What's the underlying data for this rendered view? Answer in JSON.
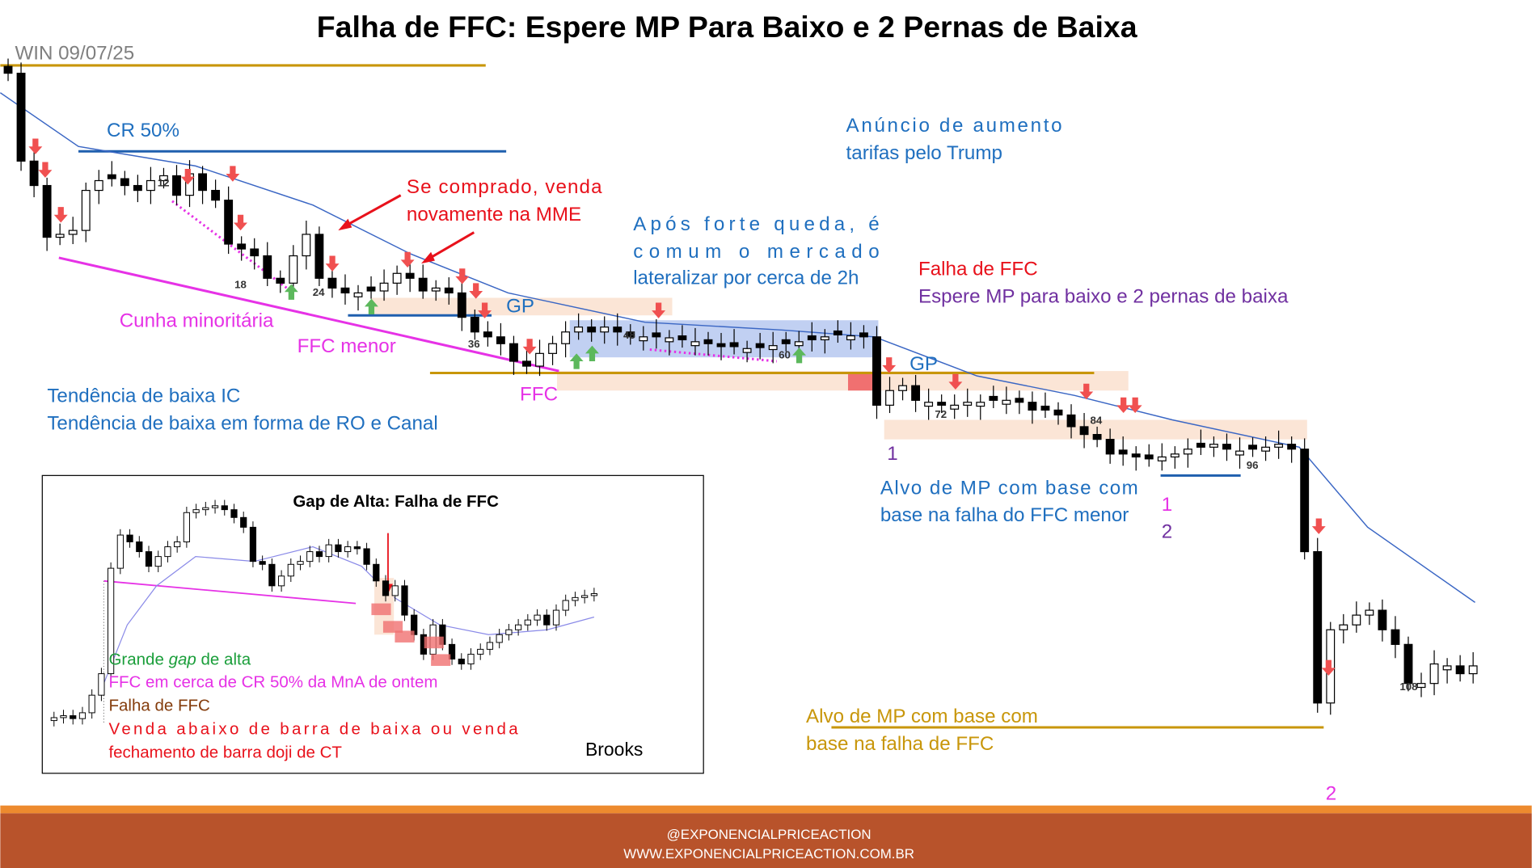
{
  "title": "Falha de FFC: Espere MP Para Baixo e 2 Pernas de Baixa",
  "symbol": "WIN 09/07/25",
  "annotations": {
    "cr50": "CR 50%",
    "sell_again": [
      "Se comprado, venda",
      "novamente na MME"
    ],
    "announcement": [
      "Anúncio de aumento",
      "tarifas pelo Trump"
    ],
    "after_drop": [
      "Após forte queda, é",
      "comum o mercado",
      "lateralizar por cerca de 2h"
    ],
    "ffc_failure": "Falha de FFC",
    "expect": "Espere MP para baixo e 2 pernas de baixa",
    "wedge": "Cunha minoritária",
    "minor_ffc": "FFC menor",
    "gp": [
      "GP",
      "GP"
    ],
    "ffc": "FFC",
    "trend": [
      "Tendência de baixa IC",
      "Tendência de baixa em forma de RO e Canal"
    ],
    "target_minor": [
      "Alvo de MP com base com",
      "base na falha do FFC menor"
    ],
    "target": [
      "Alvo de MP com base com",
      "base na falha de FFC"
    ],
    "legs": [
      "1",
      "1",
      "2",
      "2"
    ]
  },
  "bar_numbers": [
    "12",
    "18",
    "24",
    "36",
    "48",
    "60",
    "72",
    "84",
    "96",
    "108"
  ],
  "inset": {
    "title": "Gap de Alta: Falha de FFC",
    "gap_note": [
      "Grande ",
      "gap",
      " de alta"
    ],
    "notes": [
      "FFC em cerca de CR 50% da MnA de ontem",
      "Falha de FFC",
      "Venda abaixo de barra de baixa ou venda",
      "fechamento de barra doji de CT"
    ],
    "author": "Brooks"
  },
  "footer": [
    "@EXPONENCIALPRICEACTION",
    "WWW.EXPONENCIALPRICEACTION.COM.BR"
  ]
}
